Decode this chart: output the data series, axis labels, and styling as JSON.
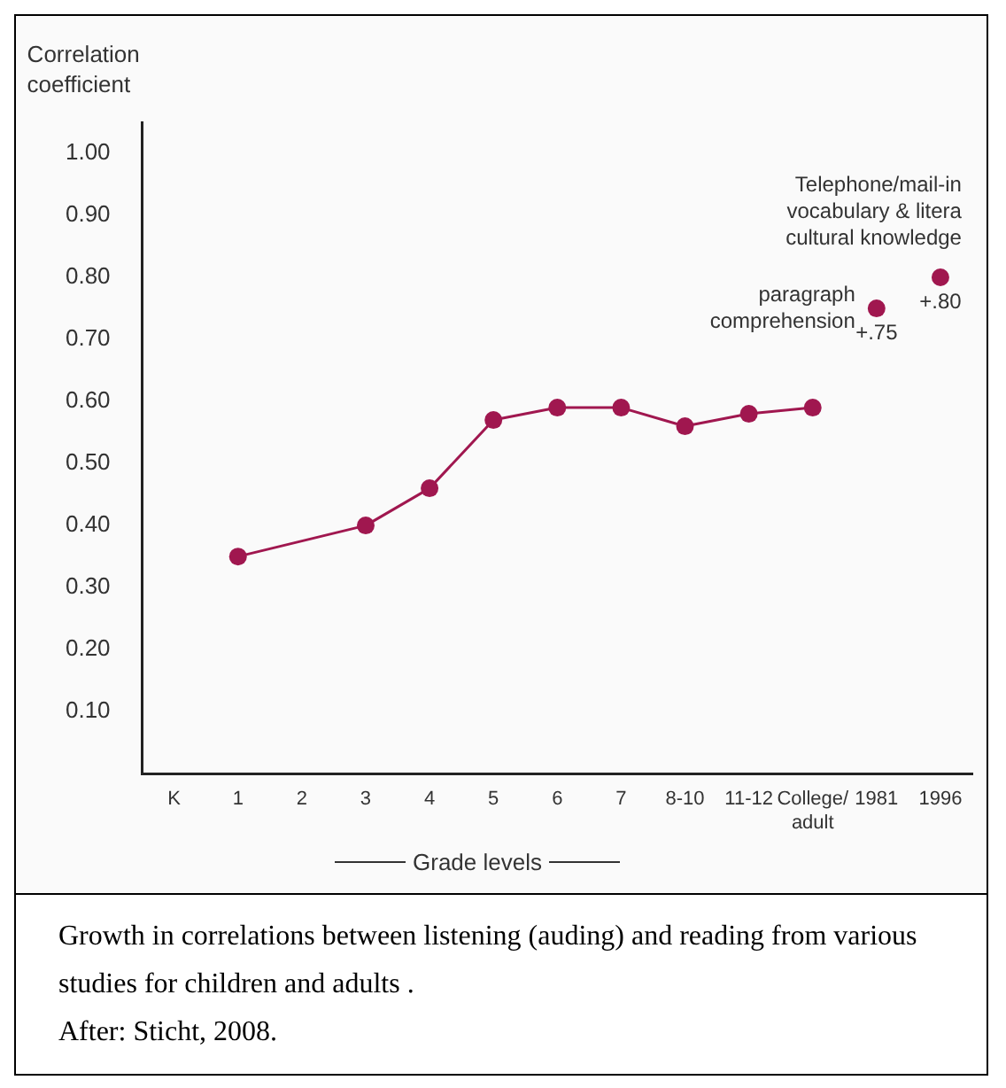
{
  "chart_data": {
    "type": "line",
    "categories": [
      "K",
      "1",
      "2",
      "3",
      "4",
      "5",
      "6",
      "7",
      "8-10",
      "11-12",
      "College/\nadult",
      "1981",
      "1996"
    ],
    "series": [
      {
        "color": "#a0174f",
        "values": [
          null,
          0.35,
          null,
          0.4,
          0.46,
          0.57,
          0.59,
          0.59,
          0.56,
          0.58,
          0.59,
          null,
          null
        ]
      },
      {
        "type": "scatter",
        "color": "#a0174f",
        "values": [
          null,
          null,
          null,
          null,
          null,
          null,
          null,
          null,
          null,
          null,
          null,
          0.75,
          0.8
        ],
        "value_labels": [
          null,
          null,
          null,
          null,
          null,
          null,
          null,
          null,
          null,
          null,
          null,
          "+.75",
          "+.80"
        ]
      }
    ],
    "ylabel": "Correlation coefficient",
    "xlabel": "Grade levels",
    "ylim": [
      0,
      1.05
    ],
    "yticks": [
      {
        "value": 0.1,
        "label": "0.10"
      },
      {
        "value": 0.2,
        "label": "0.20"
      },
      {
        "value": 0.3,
        "label": "0.30"
      },
      {
        "value": 0.4,
        "label": "0.40"
      },
      {
        "value": 0.5,
        "label": "0.50"
      },
      {
        "value": 0.6,
        "label": "0.60"
      },
      {
        "value": 0.7,
        "label": "0.70"
      },
      {
        "value": 0.8,
        "label": "0.80"
      },
      {
        "value": 0.9,
        "label": "0.90"
      },
      {
        "value": 1.0,
        "label": "1.00"
      }
    ],
    "grid": false,
    "legend": false,
    "marker": "circle",
    "line_style": "solid",
    "annotations": [
      {
        "text": "paragraph\ncomprehension",
        "x": "1981",
        "y": 0.75
      },
      {
        "text": "Telephone/mail-in\nvocabulary & litera\ncultural knowledge",
        "x": "1996",
        "y": 0.8
      },
      "Growth in correlations between listening (auding) and reading from various studies for children and adults .",
      "After:  Sticht, 2008."
    ]
  }
}
